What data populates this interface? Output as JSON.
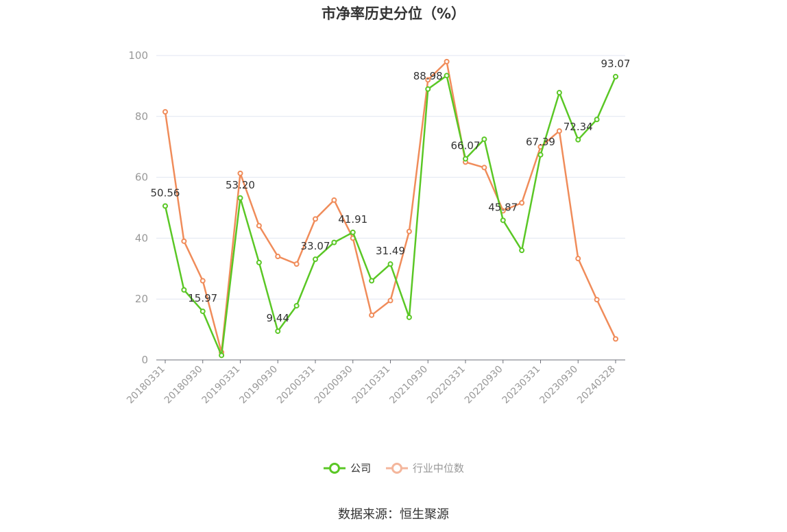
{
  "title": "市净率历史分位（%）",
  "source": "数据来源：恒生聚源",
  "colors": {
    "company": "#5ac725",
    "industry": "#f08c5a",
    "industry_legend": "#f4b69c",
    "axis": "#6e7079",
    "grid": "#e0e6f1",
    "label": "#333333"
  },
  "chart_data": {
    "type": "line",
    "title": "市净率历史分位（%）",
    "xlabel": "",
    "ylabel": "",
    "ylim": [
      0,
      100
    ],
    "yticks": [
      0,
      20,
      40,
      60,
      80,
      100
    ],
    "grid": true,
    "legend_position": "bottom",
    "x": [
      "20180331",
      "20180630",
      "20180930",
      "20181231",
      "20190331",
      "20190630",
      "20190930",
      "20191231",
      "20200331",
      "20200630",
      "20200930",
      "20201231",
      "20210331",
      "20210630",
      "20210930",
      "20211231",
      "20220331",
      "20220630",
      "20220930",
      "20221231",
      "20230331",
      "20230630",
      "20230930",
      "20231231",
      "20240328"
    ],
    "xtick_labels": [
      "20180331",
      "20180930",
      "20190331",
      "20190930",
      "20200331",
      "20200930",
      "20210331",
      "20210930",
      "20220331",
      "20220930",
      "20230331",
      "20230930",
      "20240328"
    ],
    "series": [
      {
        "name": "公司",
        "values": [
          50.56,
          23.0,
          15.97,
          1.5,
          53.2,
          32.0,
          9.44,
          17.8,
          33.07,
          38.6,
          41.91,
          26.0,
          31.49,
          14.0,
          88.98,
          93.4,
          66.07,
          72.5,
          45.87,
          36.0,
          67.39,
          87.8,
          72.34,
          79.0,
          93.07
        ],
        "data_labels": [
          {
            "index": 0,
            "text": "50.56"
          },
          {
            "index": 2,
            "text": "15.97"
          },
          {
            "index": 4,
            "text": "53.20"
          },
          {
            "index": 6,
            "text": "9.44"
          },
          {
            "index": 8,
            "text": "33.07"
          },
          {
            "index": 10,
            "text": "41.91"
          },
          {
            "index": 12,
            "text": "31.49"
          },
          {
            "index": 14,
            "text": "88.98"
          },
          {
            "index": 16,
            "text": "66.07"
          },
          {
            "index": 18,
            "text": "45.87"
          },
          {
            "index": 20,
            "text": "67.39"
          },
          {
            "index": 22,
            "text": "72.34"
          },
          {
            "index": 24,
            "text": "93.07"
          }
        ]
      },
      {
        "name": "行业中位数",
        "values": [
          81.5,
          39.0,
          26.0,
          2.5,
          61.3,
          44.1,
          34.0,
          31.5,
          46.3,
          52.5,
          40.0,
          14.7,
          19.5,
          42.2,
          92.0,
          98.0,
          65.0,
          63.2,
          49.0,
          51.6,
          70.0,
          75.2,
          33.3,
          19.8,
          6.9
        ]
      }
    ]
  }
}
